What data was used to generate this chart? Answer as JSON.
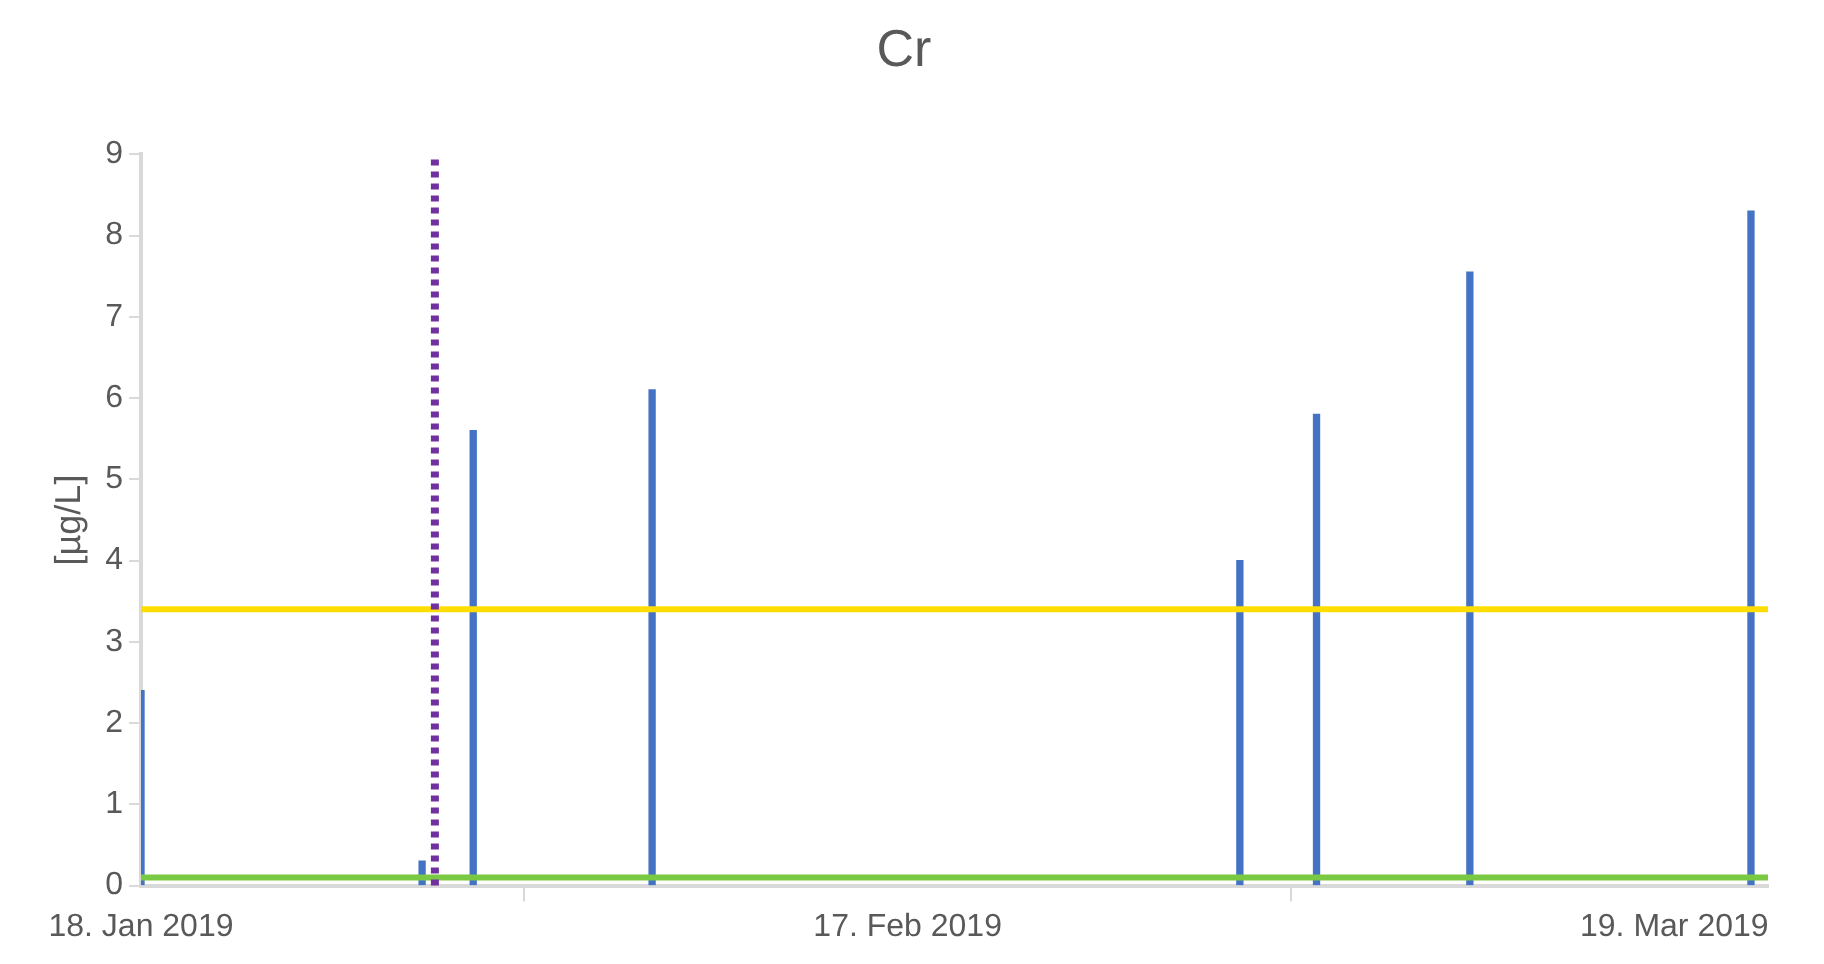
{
  "chart_data": {
    "type": "bar",
    "title": "Cr",
    "ylabel": "[µg/L]",
    "x": [
      "2019-01-18",
      "2019-01-29",
      "2019-01-31",
      "2019-02-07",
      "2019-03-02",
      "2019-03-05",
      "2019-03-11",
      "2019-03-22"
    ],
    "series": [
      {
        "color": "#4472c4",
        "values": [
          2.4,
          0.3,
          5.6,
          6.1,
          4.0,
          5.8,
          7.55,
          8.3
        ]
      }
    ],
    "xlim": [
      "2019-01-18",
      "2019-03-22T16:00"
    ],
    "xticks": [
      {
        "value": "2019-01-18",
        "label": "18. Jan 2019"
      },
      {
        "value": "2019-02-17",
        "label": "17. Feb 2019"
      },
      {
        "value": "2019-03-19",
        "label": "19. Mar 2019"
      }
    ],
    "ylim": [
      0,
      9
    ],
    "yticks": [
      0,
      1,
      2,
      3,
      4,
      5,
      6,
      7,
      8,
      9
    ],
    "ref_lines": [
      {
        "axis": "y",
        "value": 3.4,
        "color": "#ffdd00",
        "line_style": "solid"
      },
      {
        "axis": "y",
        "value": 0.1,
        "color": "#7ac943",
        "line_style": "solid"
      },
      {
        "axis": "x",
        "value": "2019-01-29T12:00",
        "color": "#7030a0",
        "line_style": "dotted"
      }
    ],
    "grid": false,
    "legend": false
  }
}
